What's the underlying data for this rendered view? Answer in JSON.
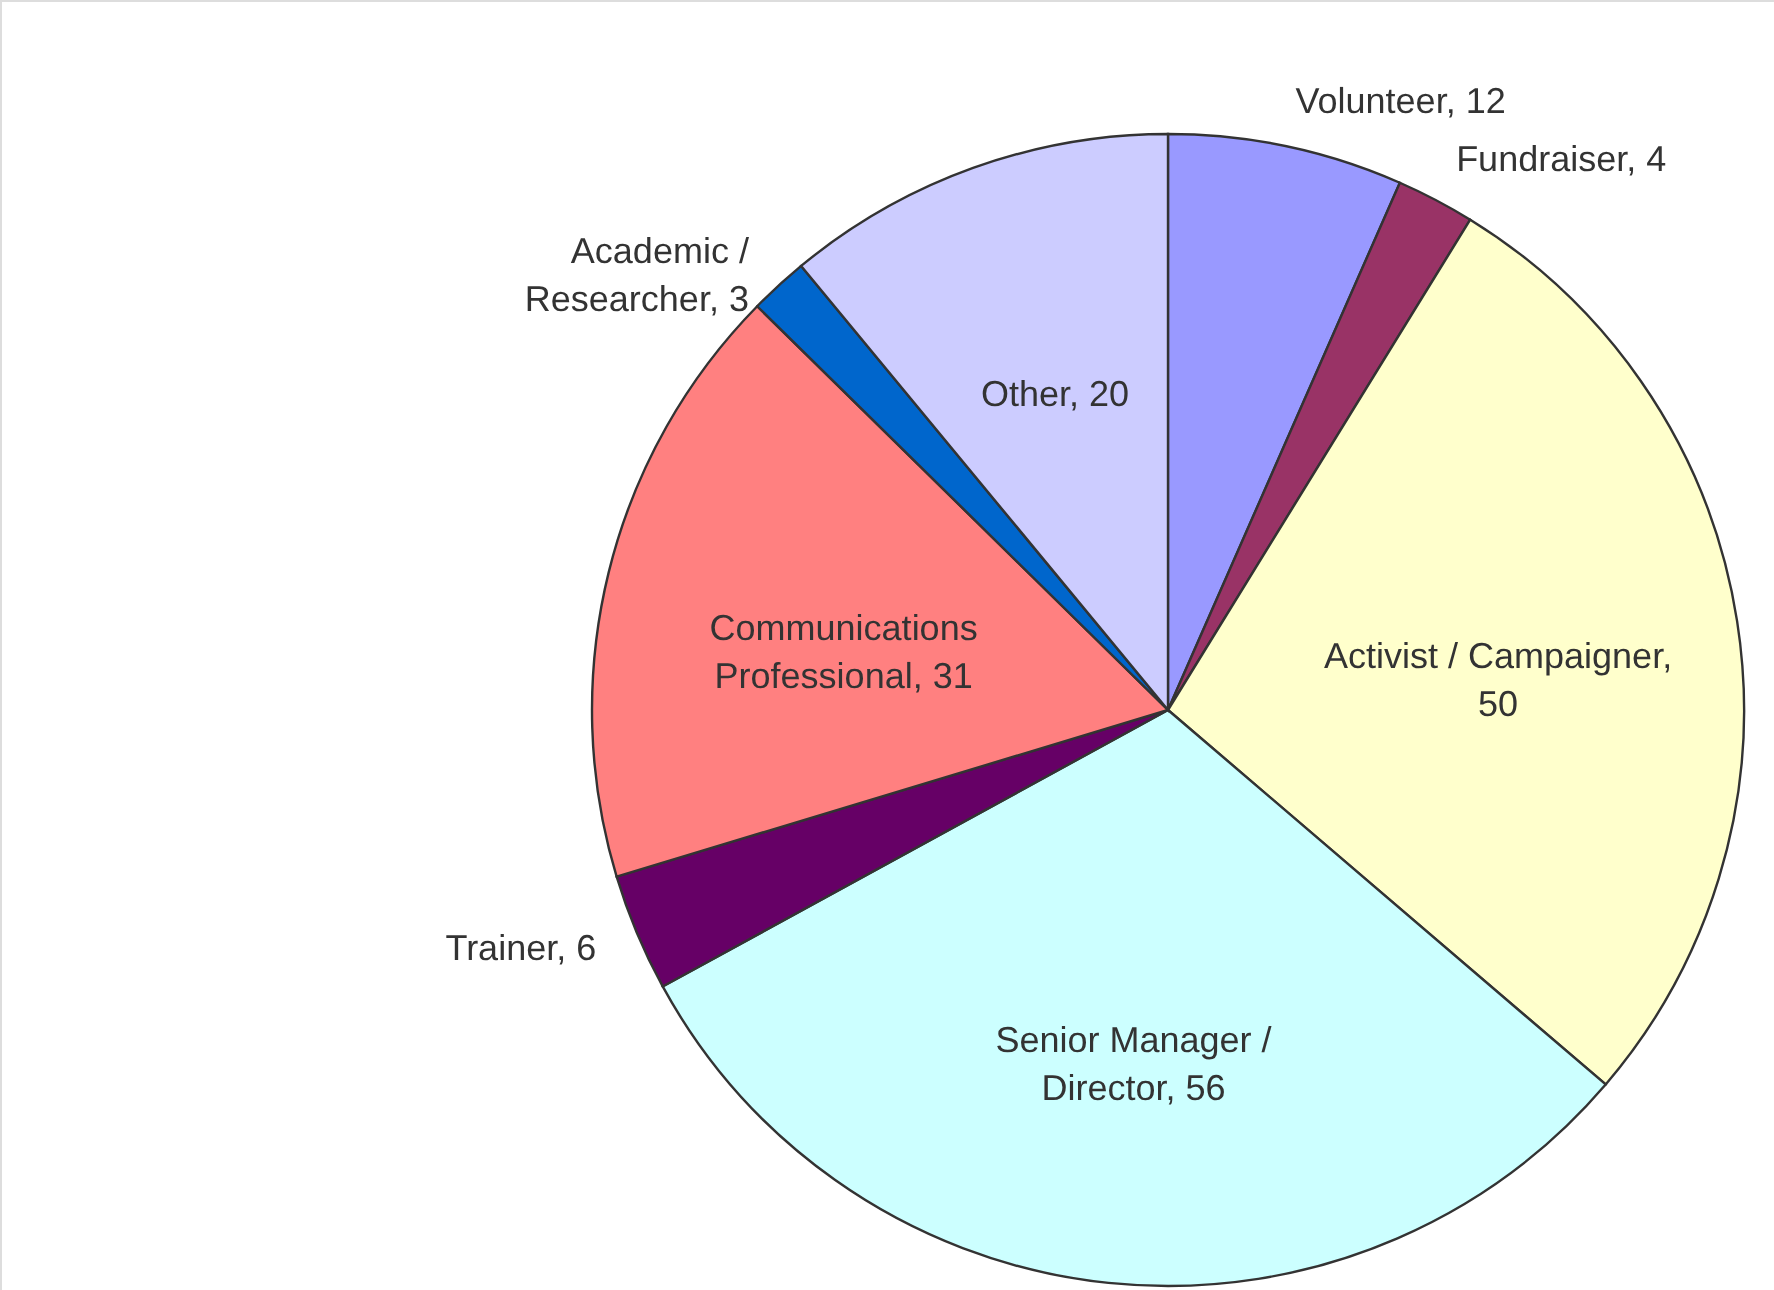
{
  "chart_data": {
    "type": "pie",
    "categories": [
      "Volunteer, 12",
      "Fundraiser, 4",
      "Activist / Campaigner, 50",
      "Senior Manager / Director, 56",
      "Trainer, 6",
      "Communications Professional, 31",
      "Academic / Researcher, 3",
      "Other, 20"
    ],
    "values": [
      12,
      4,
      50,
      56,
      6,
      31,
      3,
      20
    ],
    "colors": [
      "#9999ff",
      "#993366",
      "#ffffcc",
      "#ccffff",
      "#660066",
      "#ff8080",
      "#0066cc",
      "#ccccff"
    ]
  }
}
